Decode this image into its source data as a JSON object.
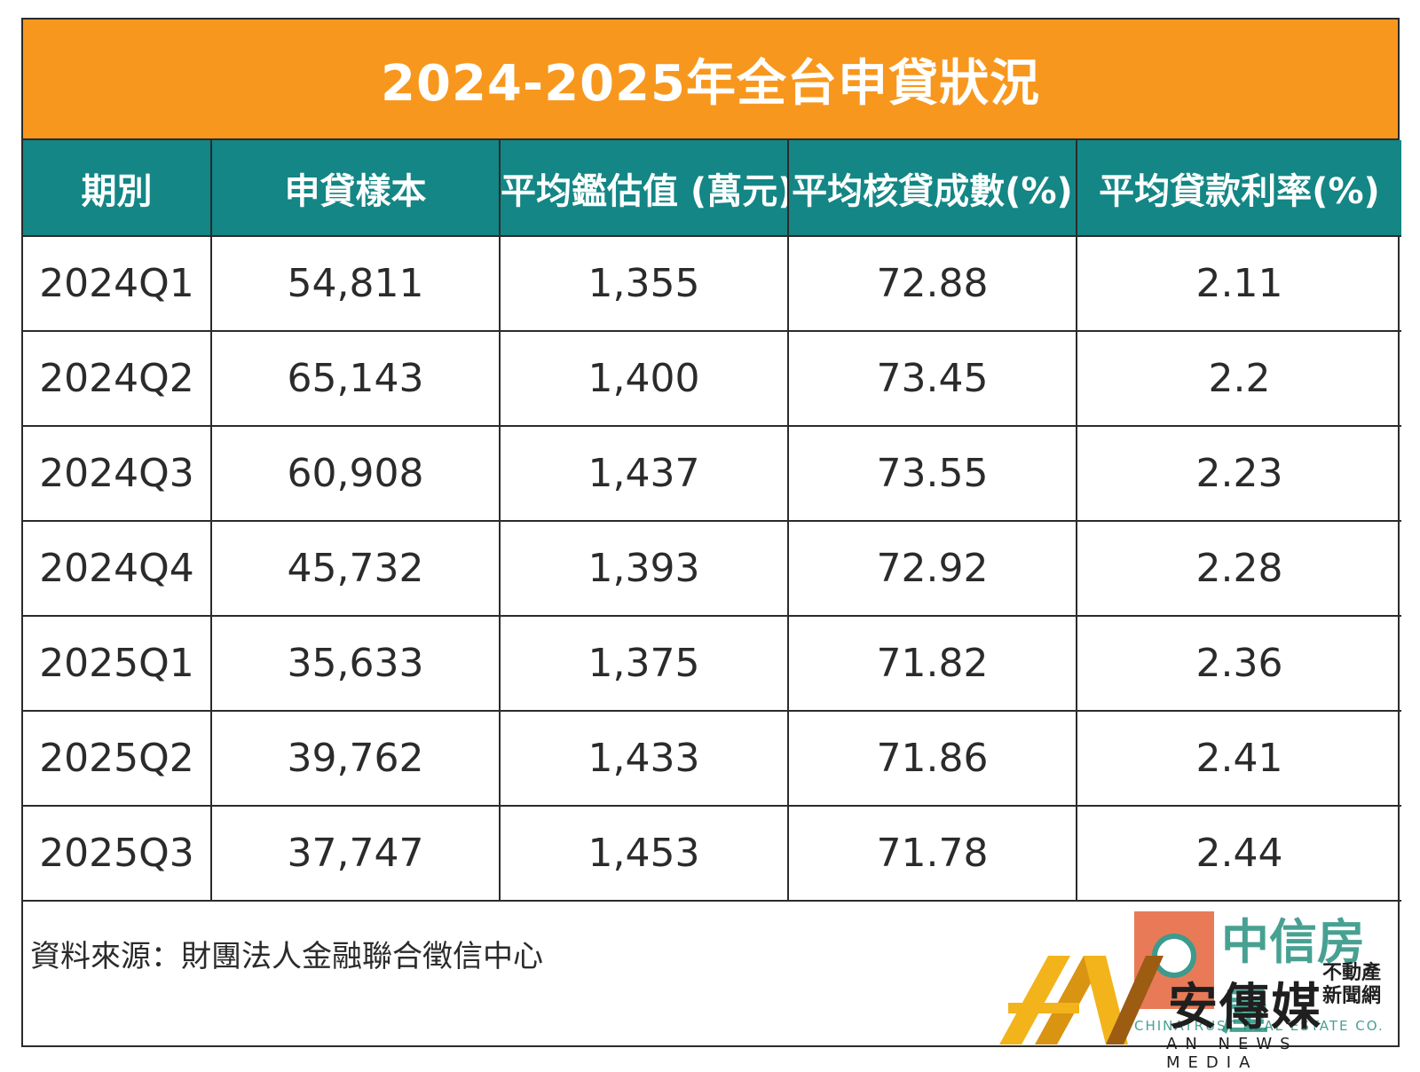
{
  "title": "2024-2025年全台申貸狀況",
  "chart_data": {
    "type": "table",
    "columns": [
      "期別",
      "申貸樣本",
      "平均鑑估值 (萬元)",
      "平均核貸成數(%)",
      "平均貸款利率(%)"
    ],
    "rows": [
      [
        "2024Q1",
        "54,811",
        "1,355",
        "72.88",
        "2.11"
      ],
      [
        "2024Q2",
        "65,143",
        "1,400",
        "73.45",
        "2.2"
      ],
      [
        "2024Q3",
        "60,908",
        "1,437",
        "73.55",
        "2.23"
      ],
      [
        "2024Q4",
        "45,732",
        "1,393",
        "72.92",
        "2.28"
      ],
      [
        "2025Q1",
        "35,633",
        "1,375",
        "71.82",
        "2.36"
      ],
      [
        "2025Q2",
        "39,762",
        "1,433",
        "71.86",
        "2.41"
      ],
      [
        "2025Q3",
        "37,747",
        "1,453",
        "71.78",
        "2.44"
      ]
    ]
  },
  "source": "資料來源：財團法人金融聯合徵信中心",
  "logos": {
    "chinatrust": {
      "cn": "中信房屋",
      "en": "CHINATRUST REAL ESTATE CO."
    },
    "an_news": {
      "name": "安傳媒",
      "sub": "不動產新聞網",
      "tag": "AN NEWS MEDIA"
    }
  },
  "colors": {
    "header_bg": "#f8971d",
    "column_header_bg": "#138685",
    "text": "#2b2b2b"
  }
}
